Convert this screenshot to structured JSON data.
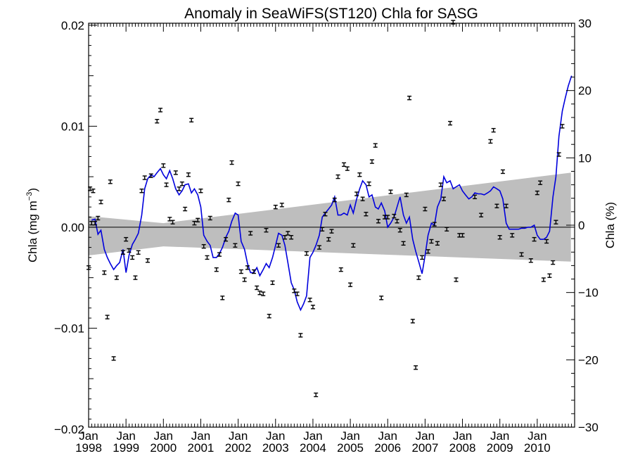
{
  "chart_data": {
    "type": "scatter",
    "title": "Anomaly in SeaWiFS(ST120) Chla for SASG",
    "ylabel_left": "Chla (mg m",
    "ylabel_left_sup": "−3",
    "ylabel_left_close": ")",
    "ylabel_right": "Chla (%)",
    "xlim": [
      1998.0,
      2011.0
    ],
    "ylim": [
      -0.0198,
      0.0202
    ],
    "ylim_right": [
      -30,
      30
    ],
    "x_ticks": [
      {
        "x": 1998,
        "month": "Jan",
        "year": "1998"
      },
      {
        "x": 1999,
        "month": "Jan",
        "year": "1999"
      },
      {
        "x": 2000,
        "month": "Jan",
        "year": "2000"
      },
      {
        "x": 2001,
        "month": "Jan",
        "year": "2001"
      },
      {
        "x": 2002,
        "month": "Jan",
        "year": "2002"
      },
      {
        "x": 2003,
        "month": "Jan",
        "year": "2003"
      },
      {
        "x": 2004,
        "month": "Jan",
        "year": "2004"
      },
      {
        "x": 2005,
        "month": "Jan",
        "year": "2005"
      },
      {
        "x": 2006,
        "month": "Jan",
        "year": "2006"
      },
      {
        "x": 2007,
        "month": "Jan",
        "year": "2007"
      },
      {
        "x": 2008,
        "month": "Jan",
        "year": "2008"
      },
      {
        "x": 2009,
        "month": "Jan",
        "year": "2009"
      },
      {
        "x": 2010,
        "month": "Jan",
        "year": "2010"
      }
    ],
    "y_ticks_left": [
      {
        "v": 0.02,
        "label": "0.02"
      },
      {
        "v": 0.01,
        "label": "0.01"
      },
      {
        "v": 0.0,
        "label": "0.00"
      },
      {
        "v": -0.01,
        "label": "−0.01"
      },
      {
        "v": -0.02,
        "label": "−0.02"
      }
    ],
    "y_ticks_right": [
      {
        "v": 30,
        "label": "30"
      },
      {
        "v": 20,
        "label": "20"
      },
      {
        "v": 10,
        "label": "10"
      },
      {
        "v": 0,
        "label": "0"
      },
      {
        "v": -10,
        "label": "−10"
      },
      {
        "v": -20,
        "label": "−20"
      },
      {
        "v": -30,
        "label": "−30"
      }
    ],
    "trend_band": {
      "x": [
        1998.0,
        2000.0,
        2010.9
      ],
      "upper": [
        0.0011,
        0.0004,
        0.0054
      ],
      "lower": [
        -0.0028,
        -0.0019,
        -0.0034
      ]
    },
    "smooth_line": {
      "color": "#0000dd",
      "points": [
        [
          1998.08,
          0.0007
        ],
        [
          1998.17,
          0.0008
        ],
        [
          1998.25,
          -0.0007
        ],
        [
          1998.33,
          -0.0003
        ],
        [
          1998.42,
          -0.0022
        ],
        [
          1998.5,
          -0.003
        ],
        [
          1998.58,
          -0.0036
        ],
        [
          1998.67,
          -0.0042
        ],
        [
          1998.75,
          -0.0038
        ],
        [
          1998.83,
          -0.0035
        ],
        [
          1998.92,
          -0.0022
        ],
        [
          1999.0,
          -0.0045
        ],
        [
          1999.08,
          -0.0028
        ],
        [
          1999.17,
          -0.0017
        ],
        [
          1999.25,
          -0.0012
        ],
        [
          1999.33,
          -0.0006
        ],
        [
          1999.42,
          0.0012
        ],
        [
          1999.5,
          0.0038
        ],
        [
          1999.58,
          0.0048
        ],
        [
          1999.67,
          0.0052
        ],
        [
          1999.75,
          0.005
        ],
        [
          1999.83,
          0.0054
        ],
        [
          1999.92,
          0.0058
        ],
        [
          2000.0,
          0.0052
        ],
        [
          2000.08,
          0.0048
        ],
        [
          2000.17,
          0.0056
        ],
        [
          2000.25,
          0.0048
        ],
        [
          2000.33,
          0.0038
        ],
        [
          2000.42,
          0.0032
        ],
        [
          2000.5,
          0.0036
        ],
        [
          2000.58,
          0.0042
        ],
        [
          2000.67,
          0.0043
        ],
        [
          2000.75,
          0.0034
        ],
        [
          2000.83,
          0.0038
        ],
        [
          2000.92,
          0.0032
        ],
        [
          2001.0,
          0.002
        ],
        [
          2001.08,
          -0.0008
        ],
        [
          2001.17,
          -0.0014
        ],
        [
          2001.25,
          -0.0018
        ],
        [
          2001.33,
          -0.003
        ],
        [
          2001.42,
          -0.003
        ],
        [
          2001.5,
          -0.0026
        ],
        [
          2001.58,
          -0.002
        ],
        [
          2001.67,
          -0.001
        ],
        [
          2001.75,
          -0.0004
        ],
        [
          2001.83,
          0.0006
        ],
        [
          2001.92,
          0.0014
        ],
        [
          2002.0,
          0.0012
        ],
        [
          2002.08,
          -0.0014
        ],
        [
          2002.17,
          -0.0022
        ],
        [
          2002.25,
          -0.0036
        ],
        [
          2002.33,
          -0.0045
        ],
        [
          2002.42,
          -0.0045
        ],
        [
          2002.5,
          -0.004
        ],
        [
          2002.58,
          -0.0048
        ],
        [
          2002.67,
          -0.0042
        ],
        [
          2002.75,
          -0.0036
        ],
        [
          2002.83,
          -0.004
        ],
        [
          2002.92,
          -0.003
        ],
        [
          2003.0,
          -0.0018
        ],
        [
          2003.08,
          -0.0006
        ],
        [
          2003.17,
          -0.0008
        ],
        [
          2003.25,
          -0.0018
        ],
        [
          2003.33,
          -0.0035
        ],
        [
          2003.42,
          -0.0055
        ],
        [
          2003.5,
          -0.0062
        ],
        [
          2003.58,
          -0.0074
        ],
        [
          2003.67,
          -0.0082
        ],
        [
          2003.75,
          -0.0076
        ],
        [
          2003.83,
          -0.0068
        ],
        [
          2003.92,
          -0.003
        ],
        [
          2004.0,
          -0.0025
        ],
        [
          2004.08,
          -0.0018
        ],
        [
          2004.17,
          -0.0008
        ],
        [
          2004.25,
          0.001
        ],
        [
          2004.33,
          0.0014
        ],
        [
          2004.42,
          0.0018
        ],
        [
          2004.5,
          0.0022
        ],
        [
          2004.58,
          0.003
        ],
        [
          2004.67,
          0.0012
        ],
        [
          2004.75,
          0.0012
        ],
        [
          2004.83,
          0.0014
        ],
        [
          2004.92,
          0.0012
        ],
        [
          2005.0,
          0.0022
        ],
        [
          2005.08,
          0.0014
        ],
        [
          2005.17,
          0.0028
        ],
        [
          2005.25,
          0.0038
        ],
        [
          2005.33,
          0.0046
        ],
        [
          2005.42,
          0.0042
        ],
        [
          2005.5,
          0.003
        ],
        [
          2005.58,
          0.0032
        ],
        [
          2005.67,
          0.002
        ],
        [
          2005.75,
          0.0018
        ],
        [
          2005.83,
          0.0024
        ],
        [
          2005.92,
          0.0016
        ],
        [
          2006.0,
          0.0
        ],
        [
          2006.08,
          0.0004
        ],
        [
          2006.17,
          0.001
        ],
        [
          2006.25,
          0.002
        ],
        [
          2006.33,
          0.003
        ],
        [
          2006.42,
          0.0012
        ],
        [
          2006.5,
          0.0004
        ],
        [
          2006.58,
          0.001
        ],
        [
          2006.67,
          -0.0012
        ],
        [
          2006.75,
          -0.0024
        ],
        [
          2006.83,
          -0.0034
        ],
        [
          2006.92,
          -0.0046
        ],
        [
          2007.0,
          -0.0028
        ],
        [
          2007.08,
          -0.0008
        ],
        [
          2007.17,
          0.0004
        ],
        [
          2007.25,
          0.0002
        ],
        [
          2007.33,
          0.002
        ],
        [
          2007.42,
          0.0028
        ],
        [
          2007.5,
          0.005
        ],
        [
          2007.58,
          0.0044
        ],
        [
          2007.67,
          0.0046
        ],
        [
          2007.75,
          0.0038
        ],
        [
          2007.83,
          0.004
        ],
        [
          2007.92,
          0.0042
        ],
        [
          2008.0,
          0.0036
        ],
        [
          2008.08,
          0.0032
        ],
        [
          2008.17,
          0.0028
        ],
        [
          2008.25,
          0.003
        ],
        [
          2008.33,
          0.0034
        ],
        [
          2008.42,
          0.0033
        ],
        [
          2008.5,
          0.0033
        ],
        [
          2008.58,
          0.0032
        ],
        [
          2008.67,
          0.0034
        ],
        [
          2008.75,
          0.0036
        ],
        [
          2008.83,
          0.004
        ],
        [
          2008.92,
          0.0038
        ],
        [
          2009.0,
          0.0036
        ],
        [
          2009.08,
          0.0028
        ],
        [
          2009.17,
          0.0004
        ],
        [
          2009.25,
          -0.0002
        ],
        [
          2009.33,
          -0.0002
        ],
        [
          2009.42,
          -0.0002
        ],
        [
          2009.5,
          -0.0002
        ],
        [
          2009.58,
          -0.0001
        ],
        [
          2009.67,
          -0.0001
        ],
        [
          2009.75,
          0.0
        ],
        [
          2009.83,
          0.0
        ],
        [
          2009.92,
          0.0002
        ],
        [
          2010.0,
          -0.0008
        ],
        [
          2010.08,
          -0.0012
        ],
        [
          2010.17,
          -0.0012
        ],
        [
          2010.25,
          -0.001
        ],
        [
          2010.33,
          -0.0004
        ],
        [
          2010.42,
          0.003
        ],
        [
          2010.5,
          0.005
        ],
        [
          2010.58,
          0.009
        ],
        [
          2010.67,
          0.0115
        ],
        [
          2010.75,
          0.0128
        ],
        [
          2010.83,
          0.014
        ],
        [
          2010.92,
          0.015
        ]
      ]
    },
    "monthly_points": [
      [
        1998.0,
        -0.004
      ],
      [
        1998.04,
        0.0038
      ],
      [
        1998.08,
        0.0004
      ],
      [
        1998.12,
        0.0036
      ],
      [
        1998.17,
        0.0004
      ],
      [
        1998.25,
        0.0009
      ],
      [
        1998.33,
        0.0025
      ],
      [
        1998.42,
        -0.0045
      ],
      [
        1998.5,
        -0.0089
      ],
      [
        1998.58,
        0.0045
      ],
      [
        1998.67,
        -0.013
      ],
      [
        1998.75,
        -0.005
      ],
      [
        1998.92,
        -0.0025
      ],
      [
        1999.0,
        -0.0012
      ],
      [
        1999.08,
        -0.0023
      ],
      [
        1999.17,
        -0.003
      ],
      [
        1999.25,
        -0.005
      ],
      [
        1999.33,
        -0.0025
      ],
      [
        1999.42,
        0.0036
      ],
      [
        1999.5,
        0.0049
      ],
      [
        1999.58,
        -0.0033
      ],
      [
        1999.67,
        0.0051
      ],
      [
        1999.83,
        0.0105
      ],
      [
        1999.92,
        0.0116
      ],
      [
        2000.0,
        0.0061
      ],
      [
        2000.08,
        0.0042
      ],
      [
        2000.17,
        0.0008
      ],
      [
        2000.25,
        0.0005
      ],
      [
        2000.33,
        0.0054
      ],
      [
        2000.42,
        0.0038
      ],
      [
        2000.5,
        0.0043
      ],
      [
        2000.58,
        0.0018
      ],
      [
        2000.67,
        0.0052
      ],
      [
        2000.75,
        0.0106
      ],
      [
        2000.83,
        0.0004
      ],
      [
        2000.92,
        0.0007
      ],
      [
        2001.0,
        0.0036
      ],
      [
        2001.08,
        -0.0019
      ],
      [
        2001.17,
        -0.003
      ],
      [
        2001.25,
        0.0009
      ],
      [
        2001.42,
        -0.0042
      ],
      [
        2001.5,
        -0.0027
      ],
      [
        2001.58,
        -0.007
      ],
      [
        2001.67,
        -0.0012
      ],
      [
        2001.75,
        0.0027
      ],
      [
        2001.83,
        0.0064
      ],
      [
        2001.92,
        -0.0018
      ],
      [
        2002.0,
        0.0043
      ],
      [
        2002.08,
        -0.0044
      ],
      [
        2002.17,
        -0.0052
      ],
      [
        2002.25,
        -0.004
      ],
      [
        2002.33,
        -0.0006
      ],
      [
        2002.42,
        -0.0044
      ],
      [
        2002.5,
        -0.006
      ],
      [
        2002.58,
        -0.0065
      ],
      [
        2002.67,
        -0.0066
      ],
      [
        2002.75,
        -0.0003
      ],
      [
        2002.83,
        -0.0088
      ],
      [
        2002.92,
        -0.0055
      ],
      [
        2003.0,
        0.002
      ],
      [
        2003.08,
        -0.0018
      ],
      [
        2003.17,
        0.0022
      ],
      [
        2003.25,
        -0.001
      ],
      [
        2003.33,
        -0.0006
      ],
      [
        2003.42,
        -0.001
      ],
      [
        2003.5,
        -0.0063
      ],
      [
        2003.58,
        -0.0066
      ],
      [
        2003.67,
        -0.0107
      ],
      [
        2003.83,
        -0.0026
      ],
      [
        2003.92,
        -0.0072
      ],
      [
        2004.0,
        -0.0079
      ],
      [
        2004.08,
        -0.0166
      ],
      [
        2004.17,
        -0.002
      ],
      [
        2004.25,
        -0.0002
      ],
      [
        2004.33,
        0.0013
      ],
      [
        2004.42,
        -0.0012
      ],
      [
        2004.5,
        -0.0004
      ],
      [
        2004.58,
        0.0027
      ],
      [
        2004.67,
        0.005
      ],
      [
        2004.75,
        -0.0042
      ],
      [
        2004.83,
        0.0062
      ],
      [
        2004.92,
        0.0058
      ],
      [
        2005.0,
        -0.0057
      ],
      [
        2005.08,
        -0.0018
      ],
      [
        2005.17,
        0.0033
      ],
      [
        2005.25,
        0.0052
      ],
      [
        2005.33,
        0.0028
      ],
      [
        2005.42,
        0.0013
      ],
      [
        2005.5,
        0.0043
      ],
      [
        2005.58,
        0.0065
      ],
      [
        2005.67,
        0.0081
      ],
      [
        2005.75,
        0.0006
      ],
      [
        2005.83,
        -0.007
      ],
      [
        2005.92,
        0.001
      ],
      [
        2006.0,
        0.001
      ],
      [
        2006.08,
        0.0035
      ],
      [
        2006.17,
        0.0011
      ],
      [
        2006.25,
        0.0006
      ],
      [
        2006.33,
        -0.0003
      ],
      [
        2006.42,
        -0.0016
      ],
      [
        2006.5,
        0.0032
      ],
      [
        2006.58,
        0.0128
      ],
      [
        2006.67,
        -0.0093
      ],
      [
        2006.75,
        -0.0139
      ],
      [
        2006.83,
        -0.005
      ],
      [
        2006.92,
        -0.003
      ],
      [
        2007.0,
        0.0018
      ],
      [
        2007.08,
        -0.0024
      ],
      [
        2007.17,
        -0.0014
      ],
      [
        2007.25,
        0.0003
      ],
      [
        2007.33,
        -0.0016
      ],
      [
        2007.42,
        0.0042
      ],
      [
        2007.5,
        0.0028
      ],
      [
        2007.58,
        -0.0002
      ],
      [
        2007.67,
        0.0103
      ],
      [
        2007.75,
        0.0203
      ],
      [
        2007.83,
        -0.0052
      ],
      [
        2007.92,
        -0.0008
      ],
      [
        2008.0,
        -0.0008
      ],
      [
        2008.33,
        0.003
      ],
      [
        2008.5,
        0.0012
      ],
      [
        2008.75,
        0.0085
      ],
      [
        2008.83,
        0.0096
      ],
      [
        2008.92,
        0.0021
      ],
      [
        2009.0,
        -0.001
      ],
      [
        2009.08,
        0.0055
      ],
      [
        2009.17,
        0.0021
      ],
      [
        2009.33,
        -0.0008
      ],
      [
        2009.58,
        -0.0027
      ],
      [
        2009.83,
        -0.0033
      ],
      [
        2009.92,
        -0.0012
      ],
      [
        2010.0,
        0.0034
      ],
      [
        2010.08,
        0.0044
      ],
      [
        2010.17,
        -0.0052
      ],
      [
        2010.25,
        -0.0014
      ],
      [
        2010.33,
        -0.0048
      ],
      [
        2010.42,
        -0.0035
      ],
      [
        2010.5,
        0.0005
      ],
      [
        2010.58,
        0.0072
      ],
      [
        2010.67,
        0.01
      ]
    ]
  }
}
